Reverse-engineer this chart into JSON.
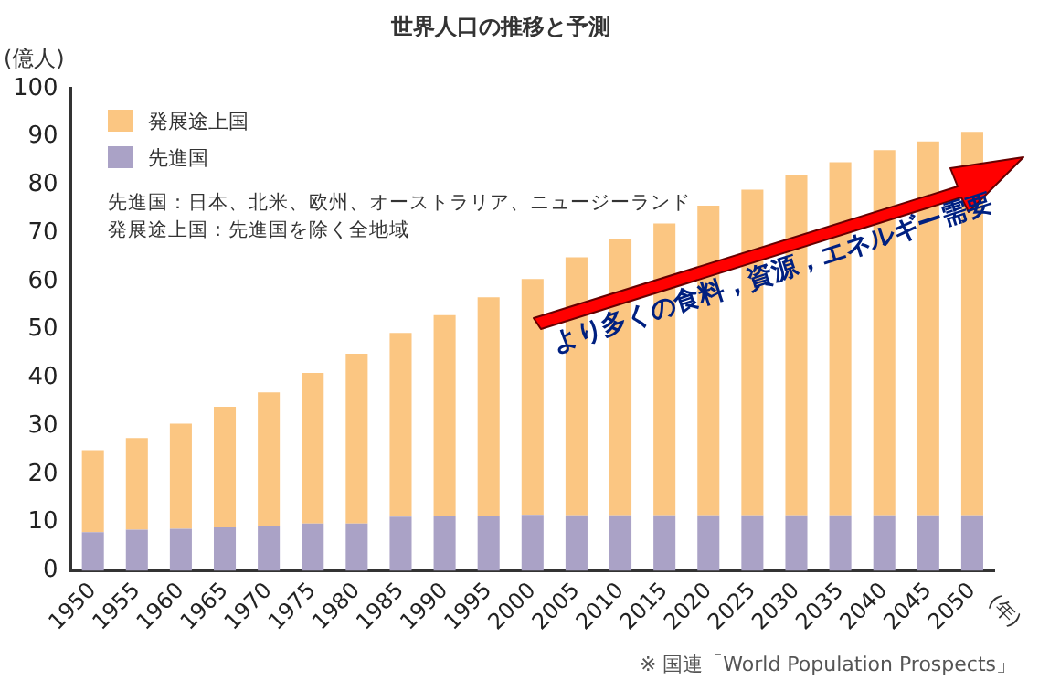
{
  "chart_data": {
    "type": "bar",
    "title": "世界人口の推移と予測",
    "xlabel": "(年)",
    "ylabel": "(億人)",
    "categories": [
      "1950",
      "1955",
      "1960",
      "1965",
      "1970",
      "1975",
      "1980",
      "1985",
      "1990",
      "1995",
      "2000",
      "2005",
      "2010",
      "2015",
      "2020",
      "2025",
      "2030",
      "2035",
      "2040",
      "2045",
      "2050"
    ],
    "series": [
      {
        "name": "先進国",
        "color": "#aaa2c6",
        "values": [
          8,
          8.5,
          8.7,
          9,
          9.2,
          9.8,
          9.8,
          11.2,
          11.3,
          11.3,
          11.6,
          11.5,
          11.5,
          11.5,
          11.5,
          11.5,
          11.5,
          11.5,
          11.5,
          11.5,
          11.5
        ]
      },
      {
        "name": "発展途上国",
        "color": "#fbc682",
        "values": [
          17,
          19,
          21.8,
          25,
          27.8,
          31.2,
          35.2,
          38.1,
          41.7,
          45.4,
          48.9,
          53.5,
          57.2,
          60.5,
          64.2,
          67.5,
          70.5,
          73.2,
          75.7,
          77.5,
          79.5
        ]
      }
    ],
    "stacked": true,
    "ylim": [
      0,
      100
    ],
    "yticks": [
      0,
      10,
      20,
      30,
      40,
      50,
      60,
      70,
      80,
      90,
      100
    ],
    "grid": false,
    "legend": "top left",
    "annotations": [
      "先進国：日本、北米、欧州、オーストラリア、ニュージーランド",
      "発展途上国：先進国を除く全地域",
      "より多くの食料，資源，エネルギー需要",
      "※ 国連「World Population Prospects」"
    ]
  }
}
